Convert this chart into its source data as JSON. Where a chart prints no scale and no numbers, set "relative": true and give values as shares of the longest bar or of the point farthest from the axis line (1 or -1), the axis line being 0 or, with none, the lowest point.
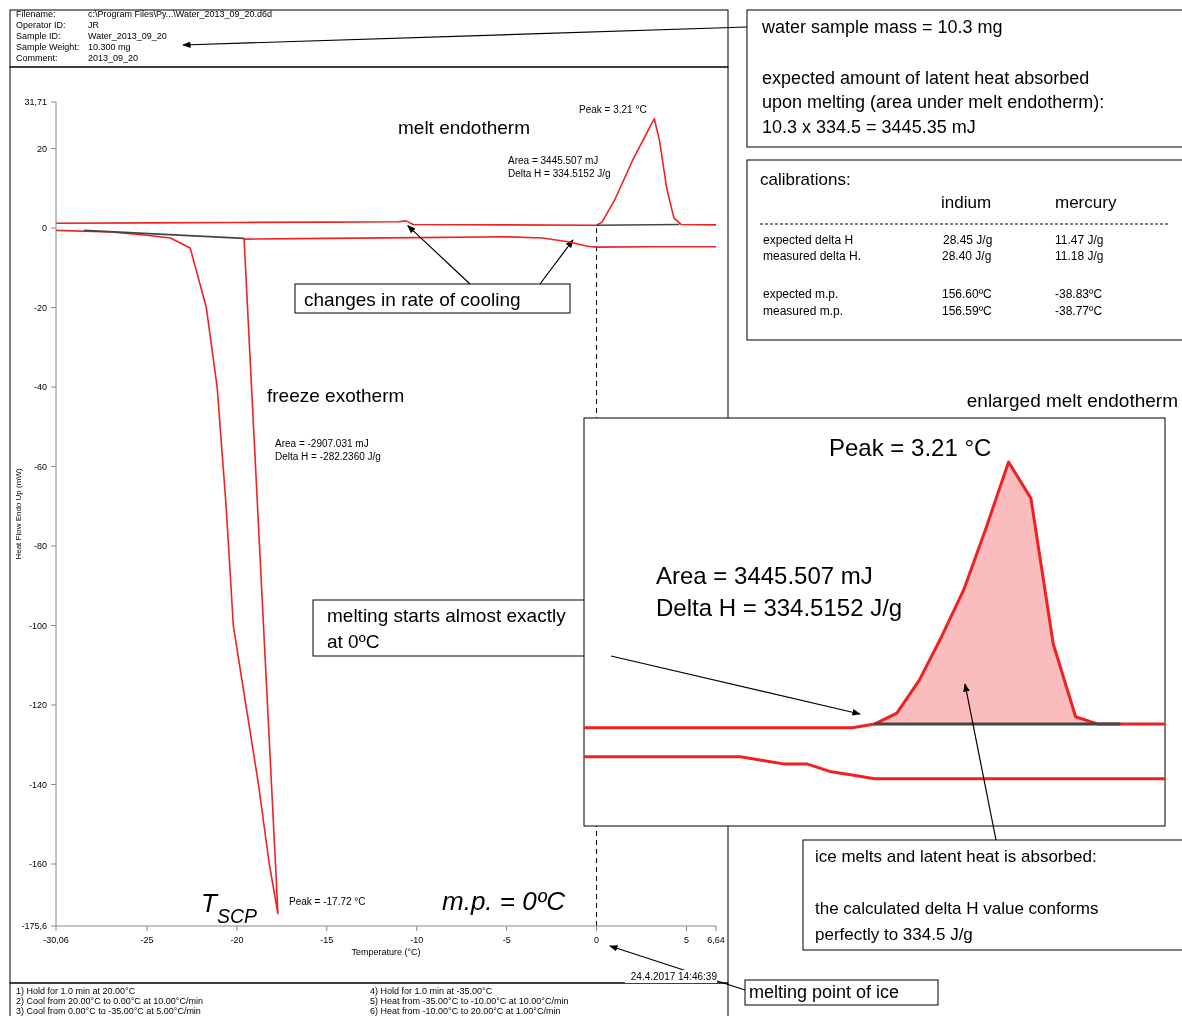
{
  "chart_data": [
    {
      "type": "line",
      "xlabel": "Temperature (°C)",
      "ylabel": "Heat Flow Endo Up (mW)",
      "xlim": [
        -30.06,
        6.64
      ],
      "ylim": [
        -175.6,
        31.71
      ],
      "xticks": [
        {
          "value": -30.06,
          "label": "-30,06"
        },
        -25,
        -20,
        -15,
        -10,
        -5,
        0,
        5,
        {
          "value": 6.64,
          "label": "6,64"
        }
      ],
      "yticks": [
        {
          "value": -175.6,
          "label": "-175,6"
        },
        -160,
        -140,
        -120,
        -100,
        -80,
        -60,
        -40,
        -20,
        0,
        20,
        {
          "value": 31.71,
          "label": "31,71"
        }
      ],
      "series": [
        {
          "color": "#ee2222",
          "x": [
            -30.06,
            -25,
            -20,
            -15,
            -11,
            -10.6,
            -10.2,
            -5,
            0,
            0.3,
            1,
            2,
            2.8,
            3.21,
            3.5,
            3.9,
            4.3,
            4.7,
            6.64
          ],
          "values": [
            1.2,
            1.3,
            1.4,
            1.5,
            1.6,
            1.8,
            0.9,
            0.8,
            0.7,
            1.5,
            7,
            17,
            24,
            27.5,
            22,
            10,
            2.5,
            0.9,
            0.8
          ]
        },
        {
          "color": "#ee2222",
          "x": [
            -30.06,
            -27,
            -25,
            -23.7,
            -22.6,
            -21.7,
            -21.1,
            -20.6,
            -20.2,
            -19.5,
            -18.8,
            -18.2,
            -17.72,
            -17.8,
            -19.6,
            -15,
            -10,
            -5,
            -3,
            -1.5,
            -0.5,
            0,
            3,
            6.64
          ],
          "values": [
            -0.6,
            -1,
            -1.8,
            -2.5,
            -5,
            -20,
            -40,
            -70,
            -100,
            -120,
            -140,
            -160,
            -172.5,
            -165,
            -2.8,
            -2.6,
            -2.4,
            -2.2,
            -2.5,
            -3.5,
            -4.6,
            -4.8,
            -4.7,
            -4.7
          ]
        },
        {
          "color": "#444444",
          "x": [
            -28.5,
            -19.6,
            -10,
            0,
            4.6
          ],
          "values": [
            -0.6,
            -2.6,
            null,
            0.7,
            0.9
          ]
        }
      ],
      "ref_lines": [
        {
          "axis": "x",
          "value": 0,
          "line_style": "dashed",
          "color": "#000000"
        }
      ],
      "annotations": [
        "Filename:",
        "c:\\Program Files\\Py...\\Water_2013_09_20.d6d",
        "Operator ID:",
        "JR",
        "Sample ID:",
        "Water_2013_09_20",
        "Sample Weight:",
        "10.300 mg",
        "Comment:",
        "2013_09_20",
        "Peak = 3.21 °C",
        "melt endotherm",
        "Area = 3445.507 mJ",
        "Delta H = 334.5152 J/g",
        {
          "text": "changes in rate of cooling",
          "x": -10.5,
          "y": 1.6
        },
        "freeze exotherm",
        "Area = -2907.031 mJ",
        "Delta H = -282.2360 J/g",
        "T$_{SCP}$",
        "Peak = -17.72 °C",
        "m.p. = 0ºC",
        "24.4.2017 14:46:39",
        "1)  Hold for 1.0 min at 20.00°C",
        "2)  Cool from 20.00°C to 0.00°C at 10.00°C/min",
        "3)  Cool from 0.00°C to -35.00°C at 5.00°C/min",
        "4)  Hold for 1.0 min at -35.00°C",
        "5)  Heat from -35.00°C to -10.00°C at 10.00°C/min",
        "6)  Heat from -10.00°C to 20.00°C at 1.00°C/min",
        "water sample mass = 10.3 mg",
        "expected amount of latent heat absorbed",
        "upon melting (area under melt endotherm):",
        "10.3 x 334.5 = 3445.35 mJ",
        "calibrations:",
        "indium",
        "mercury",
        "expected delta H",
        "28.45 J/g",
        "11.47 J/g",
        "measured delta H.",
        "28.40 J/g",
        "11.18 J/g",
        "expected m.p.",
        "156.60ºC",
        "-38.83ºC",
        "measured m.p.",
        "156.59ºC",
        "-38.77ºC",
        "ice melts and latent heat is absorbed:",
        "the calculated delta H value conforms",
        "perfectly to 334.5 J/g",
        "melting point of ice"
      ]
    },
    {
      "type": "line",
      "title": "enlarged melt endotherm",
      "relative": true,
      "categories": [
        null,
        null,
        null,
        null,
        null,
        null,
        null,
        null,
        null,
        null,
        null,
        null,
        null,
        null,
        null,
        null,
        null,
        null,
        null,
        null,
        null,
        null,
        null,
        null,
        null,
        null,
        null
      ],
      "series": [
        {
          "color": "#ee2222",
          "values": [
            0.27,
            0.27,
            0.27,
            0.27,
            0.27,
            0.27,
            0.27,
            0.27,
            0.27,
            0.27,
            0.27,
            0.27,
            0.27,
            0.28,
            0.31,
            0.4,
            0.52,
            0.65,
            0.82,
            1,
            0.9,
            0.5,
            0.3,
            0.28,
            0.28,
            0.28,
            0.28
          ],
          "lower": [
            null,
            null,
            null,
            null,
            null,
            null,
            null,
            null,
            null,
            null,
            null,
            null,
            null,
            0.28,
            0.28,
            0.28,
            0.28,
            0.28,
            0.28,
            0.28,
            0.28,
            0.28,
            0.28,
            0.28,
            0.28,
            null,
            null
          ],
          "upper": [
            null,
            null,
            null,
            null,
            null,
            null,
            null,
            null,
            null,
            null,
            null,
            null,
            null,
            0.28,
            0.31,
            0.4,
            0.52,
            0.65,
            0.82,
            1,
            0.9,
            0.5,
            0.3,
            0.28,
            0.28,
            null,
            null
          ]
        },
        {
          "color": "#ee2222",
          "values": [
            0.19,
            0.19,
            0.19,
            0.19,
            0.19,
            0.19,
            0.19,
            0.19,
            0.18,
            0.17,
            0.17,
            0.15,
            0.14,
            0.13,
            0.13,
            0.13,
            0.13,
            0.13,
            0.13,
            0.13,
            0.13,
            0.13,
            0.13,
            0.13,
            0.13,
            0.13,
            0.13
          ]
        },
        {
          "color": "#444444",
          "values": [
            null,
            null,
            null,
            null,
            null,
            null,
            null,
            null,
            null,
            null,
            null,
            null,
            null,
            0.28,
            0.28,
            0.28,
            0.28,
            0.28,
            0.28,
            0.28,
            0.28,
            0.28,
            0.28,
            0.28,
            0.28,
            null,
            null
          ]
        }
      ],
      "annotations": [
        "Peak = 3.21 °C",
        "Area = 3445.507 mJ",
        "Delta H = 334.5152 J/g",
        "melting starts almost exactly",
        "at 0ºC"
      ]
    }
  ]
}
